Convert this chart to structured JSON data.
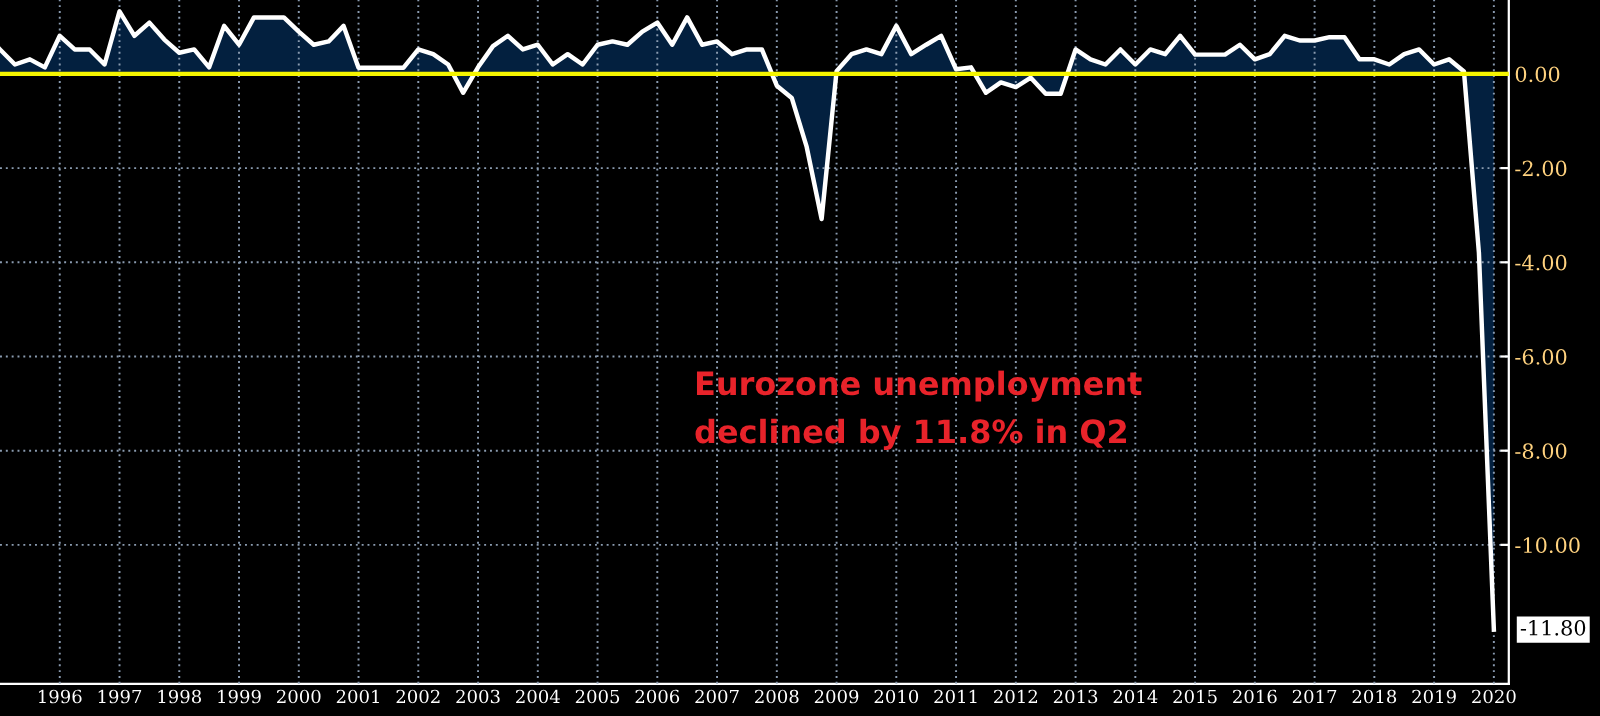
{
  "chart_data": {
    "type": "area",
    "x": [
      1995.25,
      1995.5,
      1995.75,
      1996.0,
      1996.25,
      1996.5,
      1996.75,
      1997.0,
      1997.25,
      1997.5,
      1997.75,
      1998.0,
      1998.25,
      1998.5,
      1998.75,
      1999.0,
      1999.25,
      1999.5,
      1999.75,
      2000.0,
      2000.25,
      2000.5,
      2000.75,
      2001.0,
      2001.25,
      2001.5,
      2001.75,
      2002.0,
      2002.25,
      2002.5,
      2002.75,
      2003.0,
      2003.25,
      2003.5,
      2003.75,
      2004.0,
      2004.25,
      2004.5,
      2004.75,
      2005.0,
      2005.25,
      2005.5,
      2005.75,
      2006.0,
      2006.25,
      2006.5,
      2006.75,
      2007.0,
      2007.25,
      2007.5,
      2007.75,
      2008.0,
      2008.25,
      2008.5,
      2008.75,
      2009.0,
      2009.25,
      2009.5,
      2009.75,
      2010.0,
      2010.25,
      2010.5,
      2010.75,
      2011.0,
      2011.25,
      2011.5,
      2011.75,
      2012.0,
      2012.25,
      2012.5,
      2012.75,
      2013.0,
      2013.25,
      2013.5,
      2013.75,
      2014.0,
      2014.25,
      2014.5,
      2014.75,
      2015.0,
      2015.25,
      2015.5,
      2015.75,
      2016.0,
      2016.25,
      2016.5,
      2016.75,
      2017.0,
      2017.25,
      2017.5,
      2017.75,
      2018.0,
      2018.25,
      2018.5,
      2018.75,
      2019.0,
      2019.25,
      2019.5,
      2019.75,
      2020.0,
      2020.25
    ],
    "series": [
      {
        "color": "#ffffff",
        "values": [
          0.52,
          0.2,
          0.31,
          0.14,
          0.81,
          0.52,
          0.52,
          0.2,
          1.33,
          0.81,
          1.09,
          0.73,
          0.45,
          0.52,
          0.14,
          1.02,
          0.62,
          1.2,
          1.2,
          1.2,
          0.9,
          0.62,
          0.69,
          1.02,
          0.13,
          0.13,
          0.13,
          0.13,
          0.52,
          0.42,
          0.2,
          -0.4,
          0.14,
          0.59,
          0.81,
          0.52,
          0.62,
          0.2,
          0.42,
          0.2,
          0.62,
          0.69,
          0.62,
          0.9,
          1.09,
          0.62,
          1.2,
          0.62,
          0.69,
          0.42,
          0.52,
          0.52,
          -0.25,
          -0.51,
          -1.55,
          -3.08,
          0.06,
          0.42,
          0.52,
          0.42,
          1.02,
          0.42,
          0.62,
          0.81,
          0.1,
          0.14,
          -0.4,
          -0.18,
          -0.28,
          -0.08,
          -0.42,
          -0.42,
          0.52,
          0.31,
          0.2,
          0.52,
          0.2,
          0.52,
          0.42,
          0.81,
          0.41,
          0.41,
          0.41,
          0.62,
          0.31,
          0.42,
          0.81,
          0.71,
          0.71,
          0.78,
          0.78,
          0.31,
          0.31,
          0.2,
          0.42,
          0.52,
          0.2,
          0.31,
          0.05,
          -3.8,
          -11.8
        ],
        "value_labels": [
          null,
          null,
          null,
          null,
          null,
          null,
          null,
          null,
          null,
          null,
          null,
          null,
          null,
          null,
          null,
          null,
          null,
          null,
          null,
          null,
          null,
          null,
          null,
          null,
          null,
          null,
          null,
          null,
          null,
          null,
          null,
          null,
          null,
          null,
          null,
          null,
          null,
          null,
          null,
          null,
          null,
          null,
          null,
          null,
          null,
          null,
          null,
          null,
          null,
          null,
          null,
          null,
          null,
          null,
          null,
          null,
          null,
          null,
          null,
          null,
          null,
          null,
          null,
          null,
          null,
          null,
          null,
          null,
          null,
          null,
          null,
          null,
          null,
          null,
          null,
          null,
          null,
          null,
          null,
          null,
          null,
          null,
          null,
          null,
          null,
          null,
          null,
          null,
          null,
          null,
          null,
          null,
          null,
          null,
          null,
          null,
          null,
          null,
          null,
          null,
          "-11.80"
        ]
      }
    ],
    "xlim": [
      1995.25,
      2020.5
    ],
    "xticks": [
      {
        "value": 1996.25,
        "label": "1996"
      },
      {
        "value": 1997.25,
        "label": "1997"
      },
      {
        "value": 1998.25,
        "label": "1998"
      },
      {
        "value": 1999.25,
        "label": "1999"
      },
      {
        "value": 2000.25,
        "label": "2000"
      },
      {
        "value": 2001.25,
        "label": "2001"
      },
      {
        "value": 2002.25,
        "label": "2002"
      },
      {
        "value": 2003.25,
        "label": "2003"
      },
      {
        "value": 2004.25,
        "label": "2004"
      },
      {
        "value": 2005.25,
        "label": "2005"
      },
      {
        "value": 2006.25,
        "label": "2006"
      },
      {
        "value": 2007.25,
        "label": "2007"
      },
      {
        "value": 2008.25,
        "label": "2008"
      },
      {
        "value": 2009.25,
        "label": "2009"
      },
      {
        "value": 2010.25,
        "label": "2010"
      },
      {
        "value": 2011.25,
        "label": "2011"
      },
      {
        "value": 2012.25,
        "label": "2012"
      },
      {
        "value": 2013.25,
        "label": "2013"
      },
      {
        "value": 2014.25,
        "label": "2014"
      },
      {
        "value": 2015.25,
        "label": "2015"
      },
      {
        "value": 2016.25,
        "label": "2016"
      },
      {
        "value": 2017.25,
        "label": "2017"
      },
      {
        "value": 2018.25,
        "label": "2018"
      },
      {
        "value": 2019.25,
        "label": "2019"
      },
      {
        "value": 2020.25,
        "label": "2020"
      }
    ],
    "ylim": [
      -12.95,
      1.57
    ],
    "yticks": [
      {
        "value": 0,
        "label": "0.00"
      },
      {
        "value": -2,
        "label": "-2.00"
      },
      {
        "value": -4,
        "label": "-4.00"
      },
      {
        "value": -6,
        "label": "-6.00"
      },
      {
        "value": -8,
        "label": "-8.00"
      },
      {
        "value": -10,
        "label": "-10.00"
      }
    ],
    "ref_lines": [
      {
        "axis": "y",
        "value": 0,
        "label": null,
        "color": "#f5f500"
      }
    ],
    "annotations": [
      "Eurozone unemployment\ndeclined by 11.8% in Q2"
    ],
    "grid": true,
    "legend": false
  }
}
